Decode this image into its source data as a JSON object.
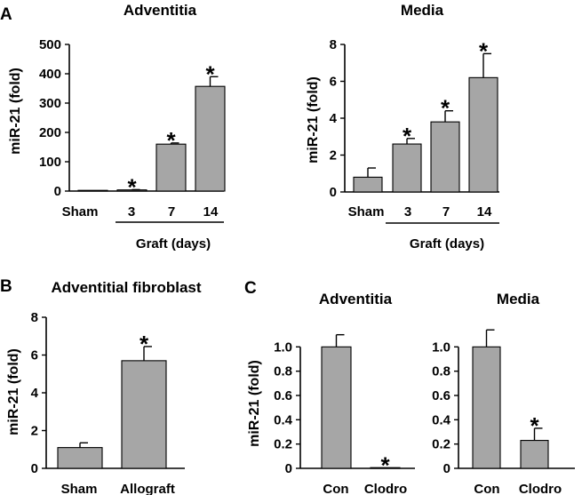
{
  "chart_data": [
    {
      "id": "A1",
      "type": "bar",
      "panel_label": "A",
      "title": "Adventitia",
      "ylabel": "miR-21 (fold)",
      "xlabel": "Graft (days)",
      "categories": [
        "Sham",
        "3",
        "7",
        "14"
      ],
      "values": [
        1,
        4,
        160,
        357
      ],
      "errors": [
        0,
        1,
        4,
        33
      ],
      "significant": [
        false,
        true,
        true,
        true
      ],
      "sig_marker": "*",
      "ylim": [
        0,
        500
      ],
      "yticks": [
        "0",
        "100",
        "200",
        "300",
        "400",
        "500"
      ],
      "bar_color": "#a6a6a6"
    },
    {
      "id": "A2",
      "type": "bar",
      "panel_label": "",
      "title": "Media",
      "ylabel": "miR-21 (fold)",
      "xlabel": "Graft (days)",
      "categories": [
        "Sham",
        "3",
        "7",
        "14"
      ],
      "values": [
        0.8,
        2.6,
        3.8,
        6.2
      ],
      "errors": [
        0.5,
        0.3,
        0.6,
        1.3
      ],
      "significant": [
        false,
        true,
        true,
        true
      ],
      "sig_marker": "*",
      "ylim": [
        0,
        8
      ],
      "yticks": [
        "0",
        "2",
        "4",
        "6",
        "8"
      ],
      "bar_color": "#a6a6a6"
    },
    {
      "id": "B",
      "type": "bar",
      "panel_label": "B",
      "title": "Adventitial fibroblast",
      "ylabel": "miR-21 (fold)",
      "xlabel": "",
      "categories": [
        "Sham",
        "Allograft"
      ],
      "values": [
        1.1,
        5.7
      ],
      "errors": [
        0.25,
        0.75
      ],
      "significant": [
        false,
        true
      ],
      "sig_marker": "*",
      "ylim": [
        0,
        8
      ],
      "yticks": [
        "0",
        "2",
        "4",
        "6",
        "8"
      ],
      "bar_color": "#a6a6a6"
    },
    {
      "id": "C1",
      "type": "bar",
      "panel_label": "C",
      "title": "Adventitia",
      "ylabel": "miR-21 (fold)",
      "xlabel": "",
      "categories": [
        "Con",
        "Clodro"
      ],
      "values": [
        1.0,
        0.005
      ],
      "errors": [
        0.1,
        0
      ],
      "significant": [
        false,
        true
      ],
      "sig_marker": "*",
      "ylim": [
        0,
        1.2
      ],
      "yticks": [
        "0",
        "0.2",
        "0.4",
        "0.6",
        "0.8",
        "1.0"
      ],
      "bar_color": "#a6a6a6"
    },
    {
      "id": "C2",
      "type": "bar",
      "panel_label": "",
      "title": "Media",
      "ylabel": "",
      "xlabel": "",
      "categories": [
        "Con",
        "Clodro"
      ],
      "values": [
        1.0,
        0.23
      ],
      "errors": [
        0.14,
        0.1
      ],
      "significant": [
        false,
        true
      ],
      "sig_marker": "*",
      "ylim": [
        0,
        1.2
      ],
      "yticks": [
        "0",
        "0.2",
        "0.4",
        "0.6",
        "0.8",
        "1.0"
      ],
      "bar_color": "#a6a6a6"
    }
  ]
}
